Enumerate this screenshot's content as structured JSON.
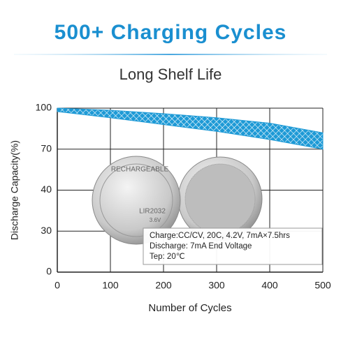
{
  "header": {
    "title": "500+ Charging Cycles",
    "subtitle": "Long Shelf Life"
  },
  "chart_data": {
    "type": "band",
    "x_label": "Number of Cycles",
    "y_label": "Discharge Capacity(%)",
    "x": [
      0,
      100,
      200,
      300,
      400,
      500
    ],
    "upper": [
      100,
      98.5,
      96,
      93,
      89,
      82
    ],
    "lower": [
      97.5,
      93,
      88,
      83,
      77,
      70
    ],
    "color": "#1e9ad6",
    "xlim": [
      0,
      500
    ],
    "xticks": [
      0,
      100,
      200,
      300,
      400,
      500
    ],
    "ylim": [
      0,
      100
    ],
    "yticks": [
      100,
      70,
      40,
      30,
      0
    ],
    "grid": true,
    "annotations": [
      "Charge:CC/CV, 20C, 4.2V, 7mA×7.5hrs",
      "Discharge: 7mA End Voltage",
      "Tep: 20℃"
    ]
  },
  "battery_labels": [
    "RECHARGEABLE",
    "LIR2032",
    "3.6V"
  ]
}
